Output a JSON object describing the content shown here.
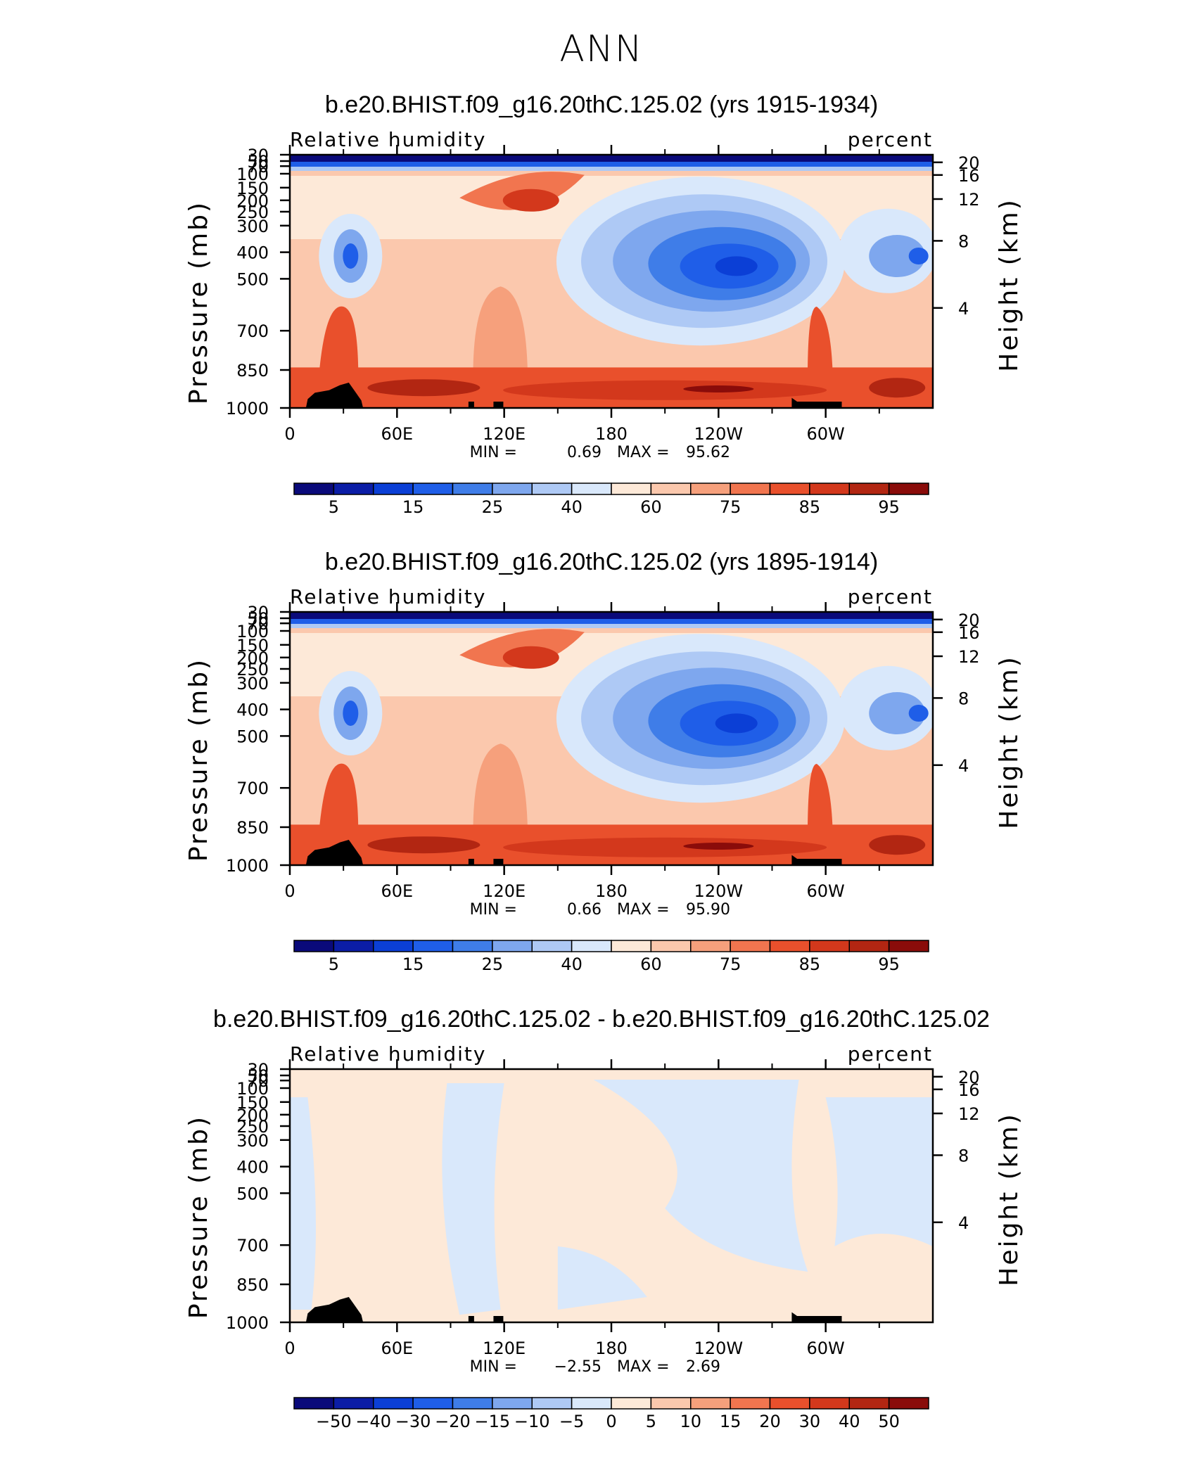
{
  "figure": {
    "title": "ANN"
  },
  "chart_data": [
    {
      "type": "heatmap",
      "panel": "top",
      "title": "b.e20.BHIST.f09_g16.20thC.125.02 (yrs 1915-1934)",
      "left_label": "Relative humidity",
      "right_label": "percent",
      "ylabel": "Pressure (mb)",
      "ylabel_right": "Height (km)",
      "xticks": [
        "0",
        "60E",
        "120E",
        "180",
        "120W",
        "60W"
      ],
      "yticks": [
        "30",
        "50",
        "70",
        "100",
        "150",
        "200",
        "250",
        "300",
        "400",
        "500",
        "700",
        "850",
        "1000"
      ],
      "yticks_right": [
        "20",
        "16",
        "12",
        "8",
        "4"
      ],
      "stats": {
        "min_label": "MIN =",
        "min": "0.69",
        "max_label": "MAX =",
        "max": "95.62"
      },
      "colorbar_labels": [
        "5",
        "15",
        "25",
        "40",
        "60",
        "75",
        "85",
        "95"
      ],
      "colorbar_colors": [
        "#0a0a7a",
        "#0b1da6",
        "#0b3fd6",
        "#1f5ee8",
        "#3f7de8",
        "#7ea7ee",
        "#aec9f5",
        "#d9e8fb",
        "#fde9d8",
        "#fbc8ad",
        "#f6a07c",
        "#f1754f",
        "#e9502c",
        "#d3381c",
        "#b22612",
        "#8a0c0a"
      ]
    },
    {
      "type": "heatmap",
      "panel": "middle",
      "title": "b.e20.BHIST.f09_g16.20thC.125.02 (yrs 1895-1914)",
      "left_label": "Relative humidity",
      "right_label": "percent",
      "ylabel": "Pressure (mb)",
      "ylabel_right": "Height (km)",
      "xticks": [
        "0",
        "60E",
        "120E",
        "180",
        "120W",
        "60W"
      ],
      "yticks": [
        "30",
        "50",
        "70",
        "100",
        "150",
        "200",
        "250",
        "300",
        "400",
        "500",
        "700",
        "850",
        "1000"
      ],
      "yticks_right": [
        "20",
        "16",
        "12",
        "8",
        "4"
      ],
      "stats": {
        "min_label": "MIN =",
        "min": "0.66",
        "max_label": "MAX =",
        "max": "95.90"
      },
      "colorbar_labels": [
        "5",
        "15",
        "25",
        "40",
        "60",
        "75",
        "85",
        "95"
      ],
      "colorbar_colors": [
        "#0a0a7a",
        "#0b1da6",
        "#0b3fd6",
        "#1f5ee8",
        "#3f7de8",
        "#7ea7ee",
        "#aec9f5",
        "#d9e8fb",
        "#fde9d8",
        "#fbc8ad",
        "#f6a07c",
        "#f1754f",
        "#e9502c",
        "#d3381c",
        "#b22612",
        "#8a0c0a"
      ]
    },
    {
      "type": "heatmap",
      "panel": "difference",
      "title": "b.e20.BHIST.f09_g16.20thC.125.02 - b.e20.BHIST.f09_g16.20thC.125.02",
      "left_label": "Relative humidity",
      "right_label": "percent",
      "ylabel": "Pressure (mb)",
      "ylabel_right": "Height (km)",
      "xticks": [
        "0",
        "60E",
        "120E",
        "180",
        "120W",
        "60W"
      ],
      "yticks": [
        "30",
        "50",
        "70",
        "100",
        "150",
        "200",
        "250",
        "300",
        "400",
        "500",
        "700",
        "850",
        "1000"
      ],
      "yticks_right": [
        "20",
        "16",
        "12",
        "8",
        "4"
      ],
      "stats": {
        "min_label": "MIN =",
        "min": "−2.55",
        "max_label": "MAX =",
        "max": "2.69"
      },
      "colorbar_labels": [
        "−50",
        "−40",
        "−30",
        "−20",
        "−15",
        "−10",
        "−5",
        "0",
        "5",
        "10",
        "15",
        "20",
        "30",
        "40",
        "50"
      ],
      "colorbar_colors": [
        "#0a0a7a",
        "#0b1da6",
        "#0b3fd6",
        "#1f5ee8",
        "#3f7de8",
        "#7ea7ee",
        "#aec9f5",
        "#d9e8fb",
        "#fde9d8",
        "#fbc8ad",
        "#f6a07c",
        "#f1754f",
        "#e9502c",
        "#d3381c",
        "#b22612",
        "#8a0c0a"
      ]
    }
  ]
}
